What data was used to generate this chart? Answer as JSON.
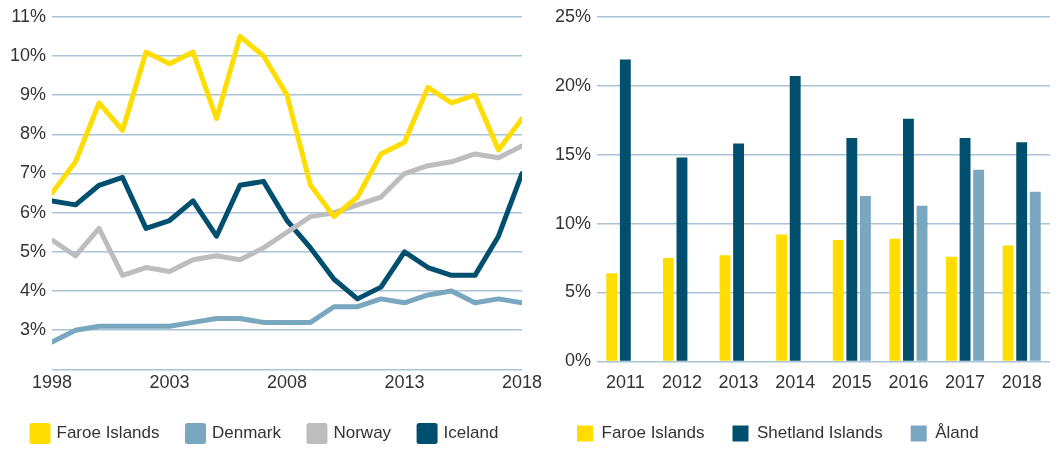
{
  "chart_data": [
    {
      "type": "line",
      "x": [
        1998,
        1999,
        2000,
        2001,
        2002,
        2003,
        2004,
        2005,
        2006,
        2007,
        2008,
        2009,
        2010,
        2011,
        2012,
        2013,
        2014,
        2015,
        2016,
        2017,
        2018
      ],
      "series": [
        {
          "name": "Faroe Islands",
          "color": "#ffdd00",
          "values": [
            6.5,
            7.3,
            8.8,
            8.1,
            10.1,
            9.8,
            10.1,
            8.4,
            10.5,
            10.0,
            9.0,
            6.7,
            5.9,
            6.4,
            7.5,
            7.8,
            9.2,
            8.8,
            9.0,
            7.6,
            8.4
          ]
        },
        {
          "name": "Denmark",
          "color": "#7aa7c0",
          "values": [
            2.7,
            3.0,
            3.1,
            3.1,
            3.1,
            3.1,
            3.2,
            3.3,
            3.3,
            3.2,
            3.2,
            3.2,
            3.6,
            3.6,
            3.8,
            3.7,
            3.9,
            4.0,
            3.7,
            3.8,
            3.7
          ]
        },
        {
          "name": "Norway",
          "color": "#bdbdc0",
          "values": [
            5.3,
            4.9,
            5.6,
            4.4,
            4.6,
            4.5,
            4.8,
            4.9,
            4.8,
            5.1,
            5.5,
            5.9,
            6.0,
            6.2,
            6.4,
            7.0,
            7.2,
            7.3,
            7.5,
            7.4,
            7.7
          ]
        },
        {
          "name": "Iceland",
          "color": "#004f6e",
          "values": [
            6.3,
            6.2,
            6.7,
            6.9,
            5.6,
            5.8,
            6.3,
            5.4,
            6.7,
            6.8,
            5.8,
            5.1,
            4.3,
            3.8,
            4.1,
            5.0,
            4.6,
            4.4,
            4.4,
            5.4,
            7.0
          ]
        }
      ],
      "xlim": [
        1998,
        2018
      ],
      "xticks": [
        1998,
        2003,
        2008,
        2013,
        2018
      ],
      "ylim": [
        2,
        11
      ],
      "yticks": [
        {
          "value": 2,
          "label": null
        },
        {
          "value": 3,
          "label": "3%"
        },
        {
          "value": 4,
          "label": "4%"
        },
        {
          "value": 5,
          "label": "5%"
        },
        {
          "value": 6,
          "label": "6%"
        },
        {
          "value": 7,
          "label": "7%"
        },
        {
          "value": 8,
          "label": "8%"
        },
        {
          "value": 9,
          "label": "9%"
        },
        {
          "value": 10,
          "label": "10%"
        },
        {
          "value": 11,
          "label": "11%"
        }
      ],
      "grid": "y",
      "legend": "bottom",
      "marker": "none"
    },
    {
      "type": "bar",
      "categories": [
        "2011",
        "2012",
        "2013",
        "2014",
        "2015",
        "2016",
        "2017",
        "2018"
      ],
      "series": [
        {
          "name": "Faroe Islands",
          "color": "#ffdd00",
          "values": [
            6.4,
            7.5,
            7.7,
            9.2,
            8.8,
            8.9,
            7.6,
            8.4
          ]
        },
        {
          "name": "Shetland Islands",
          "color": "#004f6e",
          "values": [
            21.9,
            14.8,
            15.8,
            20.7,
            16.2,
            17.6,
            16.2,
            15.9
          ]
        },
        {
          "name": "Åland",
          "color": "#7aa7c0",
          "values": [
            null,
            null,
            null,
            null,
            12.0,
            11.3,
            13.9,
            12.3
          ]
        }
      ],
      "ylim": [
        0,
        25
      ],
      "yticks": [
        {
          "value": 0,
          "label": "0%"
        },
        {
          "value": 5,
          "label": "5%"
        },
        {
          "value": 10,
          "label": "10%"
        },
        {
          "value": 15,
          "label": "15%"
        },
        {
          "value": 20,
          "label": "20%"
        },
        {
          "value": 25,
          "label": "25%"
        }
      ],
      "grid": "y",
      "legend": "bottom"
    }
  ]
}
